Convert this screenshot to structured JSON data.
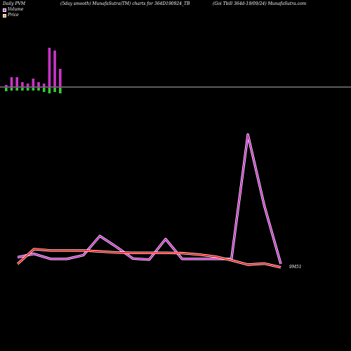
{
  "header": {
    "left": "Daily PVM",
    "middle": "(5day smooth) MunafaSutra(TM) charts for 364D190924_TB",
    "right": "(Goi  Tbill 364d-19/09/24) MunafaSutra.com"
  },
  "legend": [
    {
      "label": "Volume",
      "color": "#cc33cc"
    },
    {
      "label": "Price",
      "color": "#ff9933"
    }
  ],
  "colors": {
    "background": "#000000",
    "axis": "#bbbbbb",
    "volume_up": "#cc33cc",
    "volume_down": "#33cc33",
    "price_line": "#ff2222",
    "volume_line": "#cc33cc",
    "line_halo": "#ffffff"
  },
  "chart_data": {
    "type": "line",
    "price_label": "9M51",
    "volume_bars": {
      "up": [
        3,
        14,
        14,
        7,
        5,
        12,
        7,
        5,
        56,
        52,
        26
      ],
      "down": [
        5,
        4,
        4,
        4,
        4,
        4,
        4,
        6,
        8,
        6,
        8
      ]
    },
    "series": [
      {
        "key": "volume_smooth",
        "values": [
          2,
          3,
          1.5,
          1.5,
          2.6,
          8.3,
          5.1,
          1.6,
          1.3,
          7.4,
          1.5,
          1.5,
          1.5,
          1.5,
          38.4,
          17.2,
          0
        ]
      },
      {
        "key": "price",
        "values": [
          0,
          4.4,
          4.0,
          4.0,
          4.0,
          3.7,
          3.4,
          3.3,
          3.3,
          3.3,
          3.2,
          2.8,
          2.2,
          1.1,
          -0.2,
          0.1,
          -1.0
        ]
      }
    ],
    "ylim": [
      -5,
      45
    ]
  }
}
